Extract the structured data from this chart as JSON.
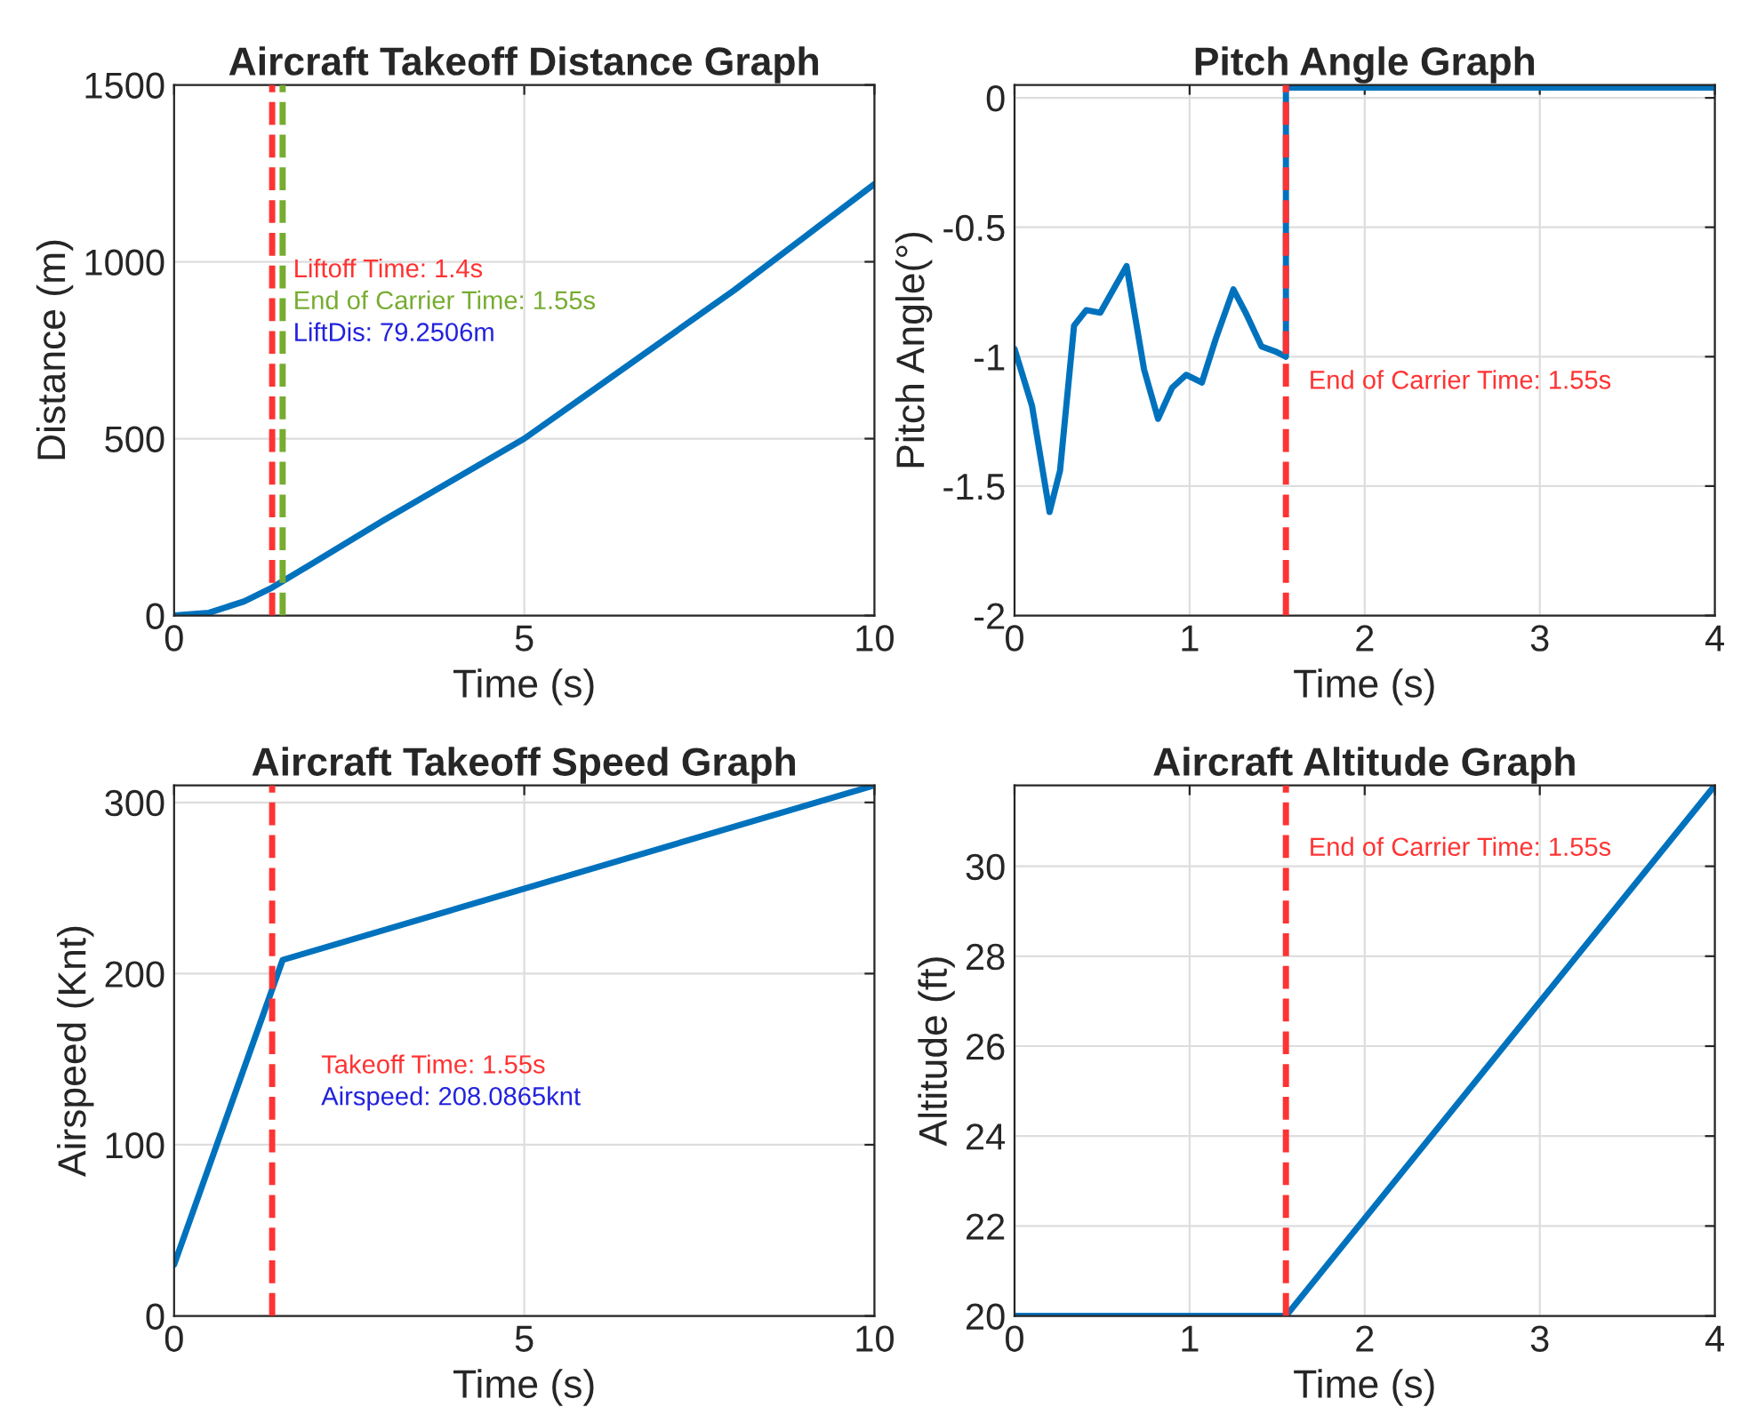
{
  "chart_data": [
    {
      "type": "line",
      "title": "Aircraft Takeoff Distance Graph",
      "xlabel": "Time (s)",
      "ylabel": "Distance (m)",
      "xlim": [
        0,
        10
      ],
      "ylim": [
        0,
        1500
      ],
      "xticks": [
        0,
        5,
        10
      ],
      "yticks": [
        0,
        500,
        1000,
        1500
      ],
      "grid": true,
      "series": [
        {
          "color": "#0072bd",
          "x": [
            0,
            0.5,
            1,
            1.4,
            2,
            3,
            4,
            5,
            6,
            7,
            8,
            9,
            10
          ],
          "values": [
            0,
            8,
            40,
            79,
            150,
            270,
            385,
            500,
            640,
            780,
            920,
            1070,
            1220
          ]
        }
      ],
      "ref_lines": [
        {
          "axis": "x",
          "value": 1.4,
          "label": "Liftoff Time: 1.4s",
          "color": "#ff3333",
          "line_style": "dashed"
        },
        {
          "axis": "x",
          "value": 1.55,
          "label": "End of Carrier Time: 1.55s",
          "color": "#77ac30",
          "line_style": "dashed"
        }
      ],
      "annotations": [
        "LiftDis: 79.2506m"
      ]
    },
    {
      "type": "line",
      "title": "Pitch Angle Graph",
      "xlabel": "Time (s)",
      "ylabel": "Pitch Angle(°)",
      "xlim": [
        0,
        4
      ],
      "ylim": [
        -2,
        0.05
      ],
      "xticks": [
        0,
        1,
        2,
        3,
        4
      ],
      "yticks": [
        -2,
        -1.5,
        -1,
        -0.5,
        0
      ],
      "grid": true,
      "series": [
        {
          "color": "#0072bd",
          "x": [
            0,
            0.1,
            0.2,
            0.26,
            0.34,
            0.41,
            0.49,
            0.64,
            0.74,
            0.82,
            0.9,
            0.98,
            1.07,
            1.15,
            1.25,
            1.32,
            1.41,
            1.49,
            1.55,
            1.55,
            4
          ],
          "values": [
            -0.97,
            -1.19,
            -1.6,
            -1.44,
            -0.88,
            -0.82,
            -0.83,
            -0.65,
            -1.05,
            -1.24,
            -1.12,
            -1.07,
            -1.1,
            -0.93,
            -0.74,
            -0.83,
            -0.96,
            -0.98,
            -1.0,
            0.04,
            0.04
          ]
        }
      ],
      "ref_lines": [
        {
          "axis": "x",
          "value": 1.55,
          "label": "End of Carrier Time: 1.55s",
          "color": "#ff3333",
          "line_style": "dashed"
        }
      ]
    },
    {
      "type": "line",
      "title": "Aircraft Takeoff Speed Graph",
      "xlabel": "Time (s)",
      "ylabel": "Airspeed (Knt)",
      "xlim": [
        0,
        10
      ],
      "ylim": [
        0,
        310
      ],
      "xticks": [
        0,
        5,
        10
      ],
      "yticks": [
        0,
        100,
        200,
        300
      ],
      "grid": true,
      "series": [
        {
          "color": "#0072bd",
          "x": [
            0,
            1.55,
            10
          ],
          "values": [
            30,
            208,
            310
          ]
        }
      ],
      "ref_lines": [
        {
          "axis": "x",
          "value": 1.4,
          "color": "#ff3333",
          "line_style": "dashed"
        }
      ],
      "annotations": [
        "Takeoff Time: 1.55s",
        "Airspeed: 208.0865knt"
      ]
    },
    {
      "type": "line",
      "title": "Aircraft Altitude Graph",
      "xlabel": "Time (s)",
      "ylabel": "Altitude (ft)",
      "xlim": [
        0,
        4
      ],
      "ylim": [
        20,
        31.8
      ],
      "xticks": [
        0,
        1,
        2,
        3,
        4
      ],
      "yticks": [
        20,
        22,
        24,
        26,
        28,
        30
      ],
      "grid": true,
      "series": [
        {
          "color": "#0072bd",
          "x": [
            0,
            1.55,
            4
          ],
          "values": [
            20,
            20,
            31.8
          ]
        }
      ],
      "ref_lines": [
        {
          "axis": "x",
          "value": 1.55,
          "label": "End of Carrier Time: 1.55s",
          "color": "#ff3333",
          "line_style": "dashed"
        }
      ]
    }
  ]
}
